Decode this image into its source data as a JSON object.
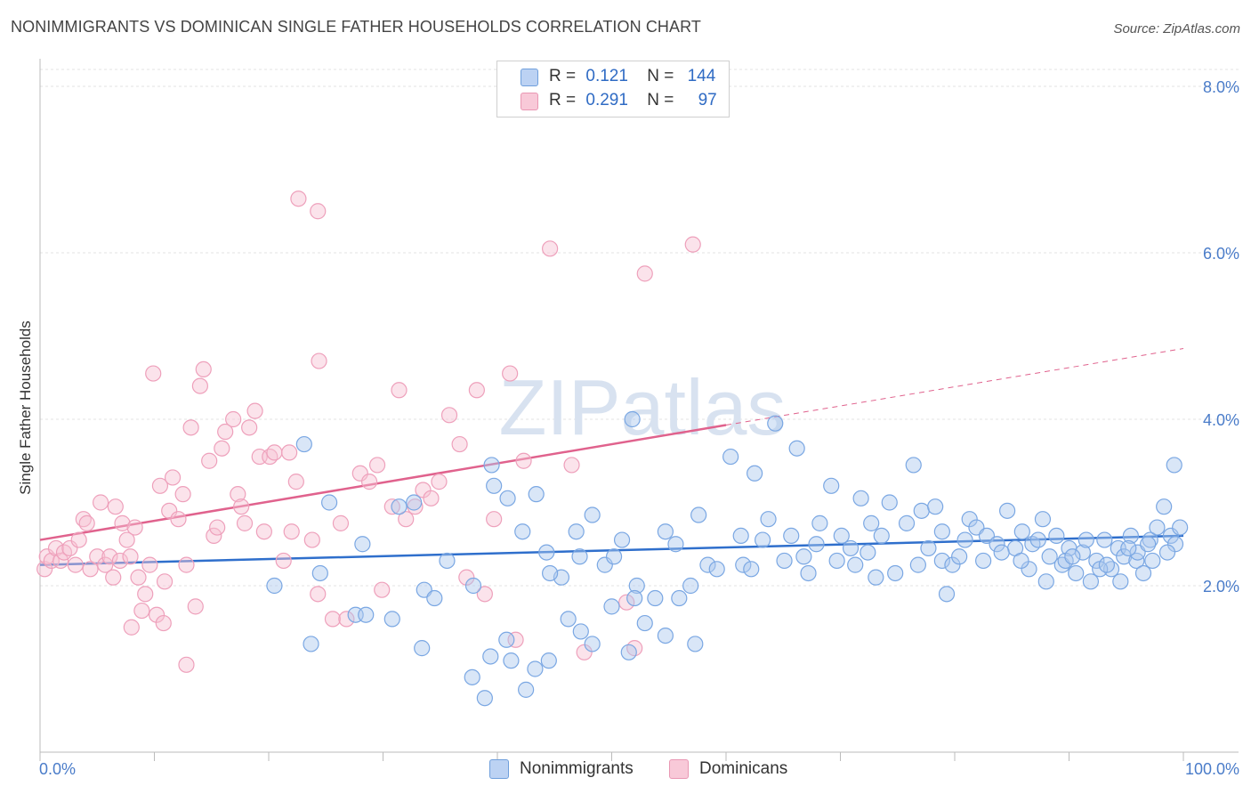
{
  "title": "NONIMMIGRANTS VS DOMINICAN SINGLE FATHER HOUSEHOLDS CORRELATION CHART",
  "source": "Source: ZipAtlas.com",
  "watermark": "ZIPatlas",
  "legend_top": {
    "rows": [
      {
        "r_label": "R =",
        "r_value": "0.121",
        "n_label": "N =",
        "n_value": "144"
      },
      {
        "r_label": "R =",
        "r_value": "0.291",
        "n_label": "N =",
        "n_value": "97"
      }
    ]
  },
  "chart_data": {
    "type": "scatter",
    "title": "NONIMMIGRANTS VS DOMINICAN SINGLE FATHER HOUSEHOLDS CORRELATION CHART",
    "xlabel": "",
    "ylabel": "Single Father Households",
    "xlim": [
      0,
      100
    ],
    "ylim": [
      0,
      8.0
    ],
    "x_tick_labels": [
      "0.0%",
      "100.0%"
    ],
    "y_tick_labels": [
      "2.0%",
      "4.0%",
      "6.0%",
      "8.0%"
    ],
    "y_ticks": [
      2,
      4,
      6,
      8
    ],
    "grid": true,
    "legend": "top-center and bottom-center",
    "series": [
      {
        "name": "Nonimmigrants",
        "color": "#7aa7e3",
        "fill": "#aac7ee",
        "trend_color": "#2f6fcc",
        "trend": {
          "x0": 0,
          "y0": 2.25,
          "x1": 100,
          "y1": 2.6,
          "dashed_from": null
        },
        "points": [
          [
            99.2,
            3.45
          ],
          [
            23.1,
            3.7
          ],
          [
            39.5,
            3.45
          ],
          [
            51.8,
            4.0
          ],
          [
            47.2,
            2.35
          ],
          [
            56.9,
            2.0
          ],
          [
            60.4,
            3.55
          ],
          [
            62.5,
            3.35
          ],
          [
            63.2,
            2.55
          ],
          [
            69.2,
            3.2
          ],
          [
            70.9,
            2.45
          ],
          [
            71.8,
            3.05
          ],
          [
            72.7,
            2.75
          ],
          [
            73.6,
            2.6
          ],
          [
            74.3,
            3.0
          ],
          [
            75.8,
            2.75
          ],
          [
            76.4,
            3.45
          ],
          [
            77.1,
            2.9
          ],
          [
            78.3,
            2.95
          ],
          [
            78.9,
            2.65
          ],
          [
            78.9,
            2.3
          ],
          [
            79.8,
            2.25
          ],
          [
            81.3,
            2.8
          ],
          [
            81.9,
            2.7
          ],
          [
            82.8,
            2.6
          ],
          [
            83.7,
            2.5
          ],
          [
            84.6,
            2.9
          ],
          [
            85.3,
            2.45
          ],
          [
            85.9,
            2.65
          ],
          [
            86.8,
            2.5
          ],
          [
            87.7,
            2.8
          ],
          [
            88.3,
            2.35
          ],
          [
            88.9,
            2.6
          ],
          [
            89.4,
            2.25
          ],
          [
            90.0,
            2.45
          ],
          [
            90.6,
            2.15
          ],
          [
            91.2,
            2.4
          ],
          [
            91.9,
            2.05
          ],
          [
            92.4,
            2.3
          ],
          [
            93.1,
            2.55
          ],
          [
            93.7,
            2.2
          ],
          [
            94.3,
            2.45
          ],
          [
            94.8,
            2.35
          ],
          [
            95.4,
            2.6
          ],
          [
            95.9,
            2.3
          ],
          [
            96.5,
            2.15
          ],
          [
            97.1,
            2.55
          ],
          [
            97.7,
            2.7
          ],
          [
            98.3,
            2.95
          ],
          [
            98.9,
            2.6
          ],
          [
            99.3,
            2.5
          ],
          [
            99.7,
            2.7
          ],
          [
            66.2,
            3.65
          ],
          [
            64.3,
            3.95
          ],
          [
            67.2,
            2.15
          ],
          [
            68.2,
            2.75
          ],
          [
            44.3,
            2.4
          ],
          [
            45.6,
            2.1
          ],
          [
            46.9,
            2.65
          ],
          [
            48.3,
            2.85
          ],
          [
            49.4,
            2.25
          ],
          [
            50.2,
            2.35
          ],
          [
            50.9,
            2.55
          ],
          [
            52.2,
            2.0
          ],
          [
            53.8,
            1.85
          ],
          [
            54.7,
            2.65
          ],
          [
            55.6,
            2.5
          ],
          [
            57.6,
            2.85
          ],
          [
            58.4,
            2.25
          ],
          [
            59.2,
            2.2
          ],
          [
            61.3,
            2.6
          ],
          [
            65.1,
            2.3
          ],
          [
            31.4,
            2.95
          ],
          [
            28.2,
            2.5
          ],
          [
            27.6,
            1.65
          ],
          [
            25.3,
            3.0
          ],
          [
            24.5,
            2.15
          ],
          [
            20.5,
            2.0
          ],
          [
            32.7,
            3.0
          ],
          [
            33.6,
            1.95
          ],
          [
            34.5,
            1.85
          ],
          [
            35.6,
            2.3
          ],
          [
            37.9,
            2.0
          ],
          [
            39.7,
            3.2
          ],
          [
            40.9,
            3.05
          ],
          [
            42.2,
            2.65
          ],
          [
            43.4,
            3.1
          ],
          [
            23.7,
            1.3
          ],
          [
            28.5,
            1.65
          ],
          [
            30.8,
            1.6
          ],
          [
            33.4,
            1.25
          ],
          [
            37.8,
            0.9
          ],
          [
            39.4,
            1.15
          ],
          [
            40.8,
            1.35
          ],
          [
            41.2,
            1.1
          ],
          [
            43.3,
            1.0
          ],
          [
            44.6,
            2.15
          ],
          [
            46.2,
            1.6
          ],
          [
            47.3,
            1.45
          ],
          [
            48.3,
            1.3
          ],
          [
            50.0,
            1.75
          ],
          [
            51.5,
            1.2
          ],
          [
            52.0,
            1.85
          ],
          [
            52.9,
            1.55
          ],
          [
            54.7,
            1.4
          ],
          [
            55.9,
            1.85
          ],
          [
            57.3,
            1.3
          ],
          [
            38.9,
            0.65
          ],
          [
            42.5,
            0.75
          ],
          [
            44.5,
            1.1
          ],
          [
            61.5,
            2.25
          ],
          [
            62.2,
            2.2
          ],
          [
            69.7,
            2.3
          ],
          [
            72.4,
            2.4
          ],
          [
            76.8,
            2.25
          ],
          [
            79.3,
            1.9
          ],
          [
            80.4,
            2.35
          ],
          [
            86.5,
            2.2
          ],
          [
            88.0,
            2.05
          ],
          [
            89.7,
            2.3
          ],
          [
            91.5,
            2.55
          ],
          [
            92.7,
            2.2
          ],
          [
            94.5,
            2.05
          ],
          [
            96.0,
            2.4
          ],
          [
            97.3,
            2.3
          ],
          [
            98.6,
            2.4
          ],
          [
            63.7,
            2.8
          ],
          [
            65.7,
            2.6
          ],
          [
            66.8,
            2.35
          ],
          [
            67.9,
            2.5
          ],
          [
            70.1,
            2.6
          ],
          [
            71.3,
            2.25
          ],
          [
            73.1,
            2.1
          ],
          [
            74.8,
            2.15
          ],
          [
            77.7,
            2.45
          ],
          [
            80.9,
            2.55
          ],
          [
            82.5,
            2.3
          ],
          [
            84.1,
            2.4
          ],
          [
            85.8,
            2.3
          ],
          [
            87.3,
            2.55
          ],
          [
            90.3,
            2.35
          ],
          [
            93.3,
            2.25
          ],
          [
            95.2,
            2.45
          ],
          [
            96.9,
            2.5
          ]
        ]
      },
      {
        "name": "Dominicans",
        "color": "#eea0bb",
        "fill": "#f6c2d3",
        "trend_color": "#e0628d",
        "trend": {
          "x0": 0,
          "y0": 2.55,
          "x1": 100,
          "y1": 4.85,
          "dashed_from": 60
        },
        "points": [
          [
            0.4,
            2.2
          ],
          [
            0.6,
            2.35
          ],
          [
            1.0,
            2.3
          ],
          [
            1.4,
            2.45
          ],
          [
            1.8,
            2.3
          ],
          [
            2.1,
            2.4
          ],
          [
            2.6,
            2.45
          ],
          [
            3.1,
            2.25
          ],
          [
            3.4,
            2.55
          ],
          [
            3.8,
            2.8
          ],
          [
            4.1,
            2.75
          ],
          [
            4.4,
            2.2
          ],
          [
            5.0,
            2.35
          ],
          [
            5.3,
            3.0
          ],
          [
            5.7,
            2.25
          ],
          [
            6.1,
            2.35
          ],
          [
            6.4,
            2.1
          ],
          [
            6.6,
            2.95
          ],
          [
            7.0,
            2.3
          ],
          [
            7.2,
            2.75
          ],
          [
            7.6,
            2.55
          ],
          [
            7.9,
            2.35
          ],
          [
            8.0,
            1.5
          ],
          [
            8.3,
            2.7
          ],
          [
            8.6,
            2.1
          ],
          [
            8.9,
            1.7
          ],
          [
            9.2,
            1.9
          ],
          [
            9.6,
            2.25
          ],
          [
            9.9,
            4.55
          ],
          [
            10.2,
            1.65
          ],
          [
            10.5,
            3.2
          ],
          [
            10.8,
            1.55
          ],
          [
            10.9,
            2.05
          ],
          [
            11.3,
            2.9
          ],
          [
            11.6,
            3.3
          ],
          [
            12.1,
            2.8
          ],
          [
            12.5,
            3.1
          ],
          [
            12.8,
            2.25
          ],
          [
            13.2,
            3.9
          ],
          [
            13.6,
            1.75
          ],
          [
            14.0,
            4.4
          ],
          [
            14.3,
            4.6
          ],
          [
            14.8,
            3.5
          ],
          [
            15.2,
            2.6
          ],
          [
            15.5,
            2.7
          ],
          [
            15.9,
            3.65
          ],
          [
            16.2,
            3.85
          ],
          [
            16.9,
            4.0
          ],
          [
            17.3,
            3.1
          ],
          [
            17.6,
            2.95
          ],
          [
            17.9,
            2.75
          ],
          [
            18.3,
            3.9
          ],
          [
            18.8,
            4.1
          ],
          [
            19.2,
            3.55
          ],
          [
            19.6,
            2.65
          ],
          [
            20.1,
            3.55
          ],
          [
            20.5,
            3.6
          ],
          [
            21.3,
            2.3
          ],
          [
            21.8,
            3.6
          ],
          [
            22.4,
            3.25
          ],
          [
            22.0,
            2.65
          ],
          [
            22.6,
            6.65
          ],
          [
            24.3,
            6.5
          ],
          [
            23.8,
            2.55
          ],
          [
            24.3,
            1.9
          ],
          [
            24.4,
            4.7
          ],
          [
            25.6,
            1.6
          ],
          [
            26.3,
            2.75
          ],
          [
            26.8,
            1.6
          ],
          [
            28.0,
            3.35
          ],
          [
            28.8,
            3.25
          ],
          [
            29.5,
            3.45
          ],
          [
            29.9,
            1.95
          ],
          [
            30.8,
            2.95
          ],
          [
            31.4,
            4.35
          ],
          [
            32.0,
            2.8
          ],
          [
            32.8,
            2.95
          ],
          [
            33.5,
            3.15
          ],
          [
            34.2,
            3.05
          ],
          [
            34.9,
            3.25
          ],
          [
            35.8,
            4.05
          ],
          [
            36.7,
            3.7
          ],
          [
            37.3,
            2.1
          ],
          [
            38.2,
            4.35
          ],
          [
            38.9,
            1.9
          ],
          [
            39.7,
            2.8
          ],
          [
            41.1,
            4.55
          ],
          [
            41.6,
            1.35
          ],
          [
            42.3,
            3.5
          ],
          [
            44.6,
            6.05
          ],
          [
            46.5,
            3.45
          ],
          [
            47.6,
            1.2
          ],
          [
            51.3,
            1.8
          ],
          [
            52.0,
            1.25
          ],
          [
            52.9,
            5.75
          ],
          [
            57.1,
            6.1
          ],
          [
            12.8,
            1.05
          ]
        ]
      }
    ]
  },
  "bottom_legend": [
    {
      "label": "Nonimmigrants"
    },
    {
      "label": "Dominicans"
    }
  ]
}
